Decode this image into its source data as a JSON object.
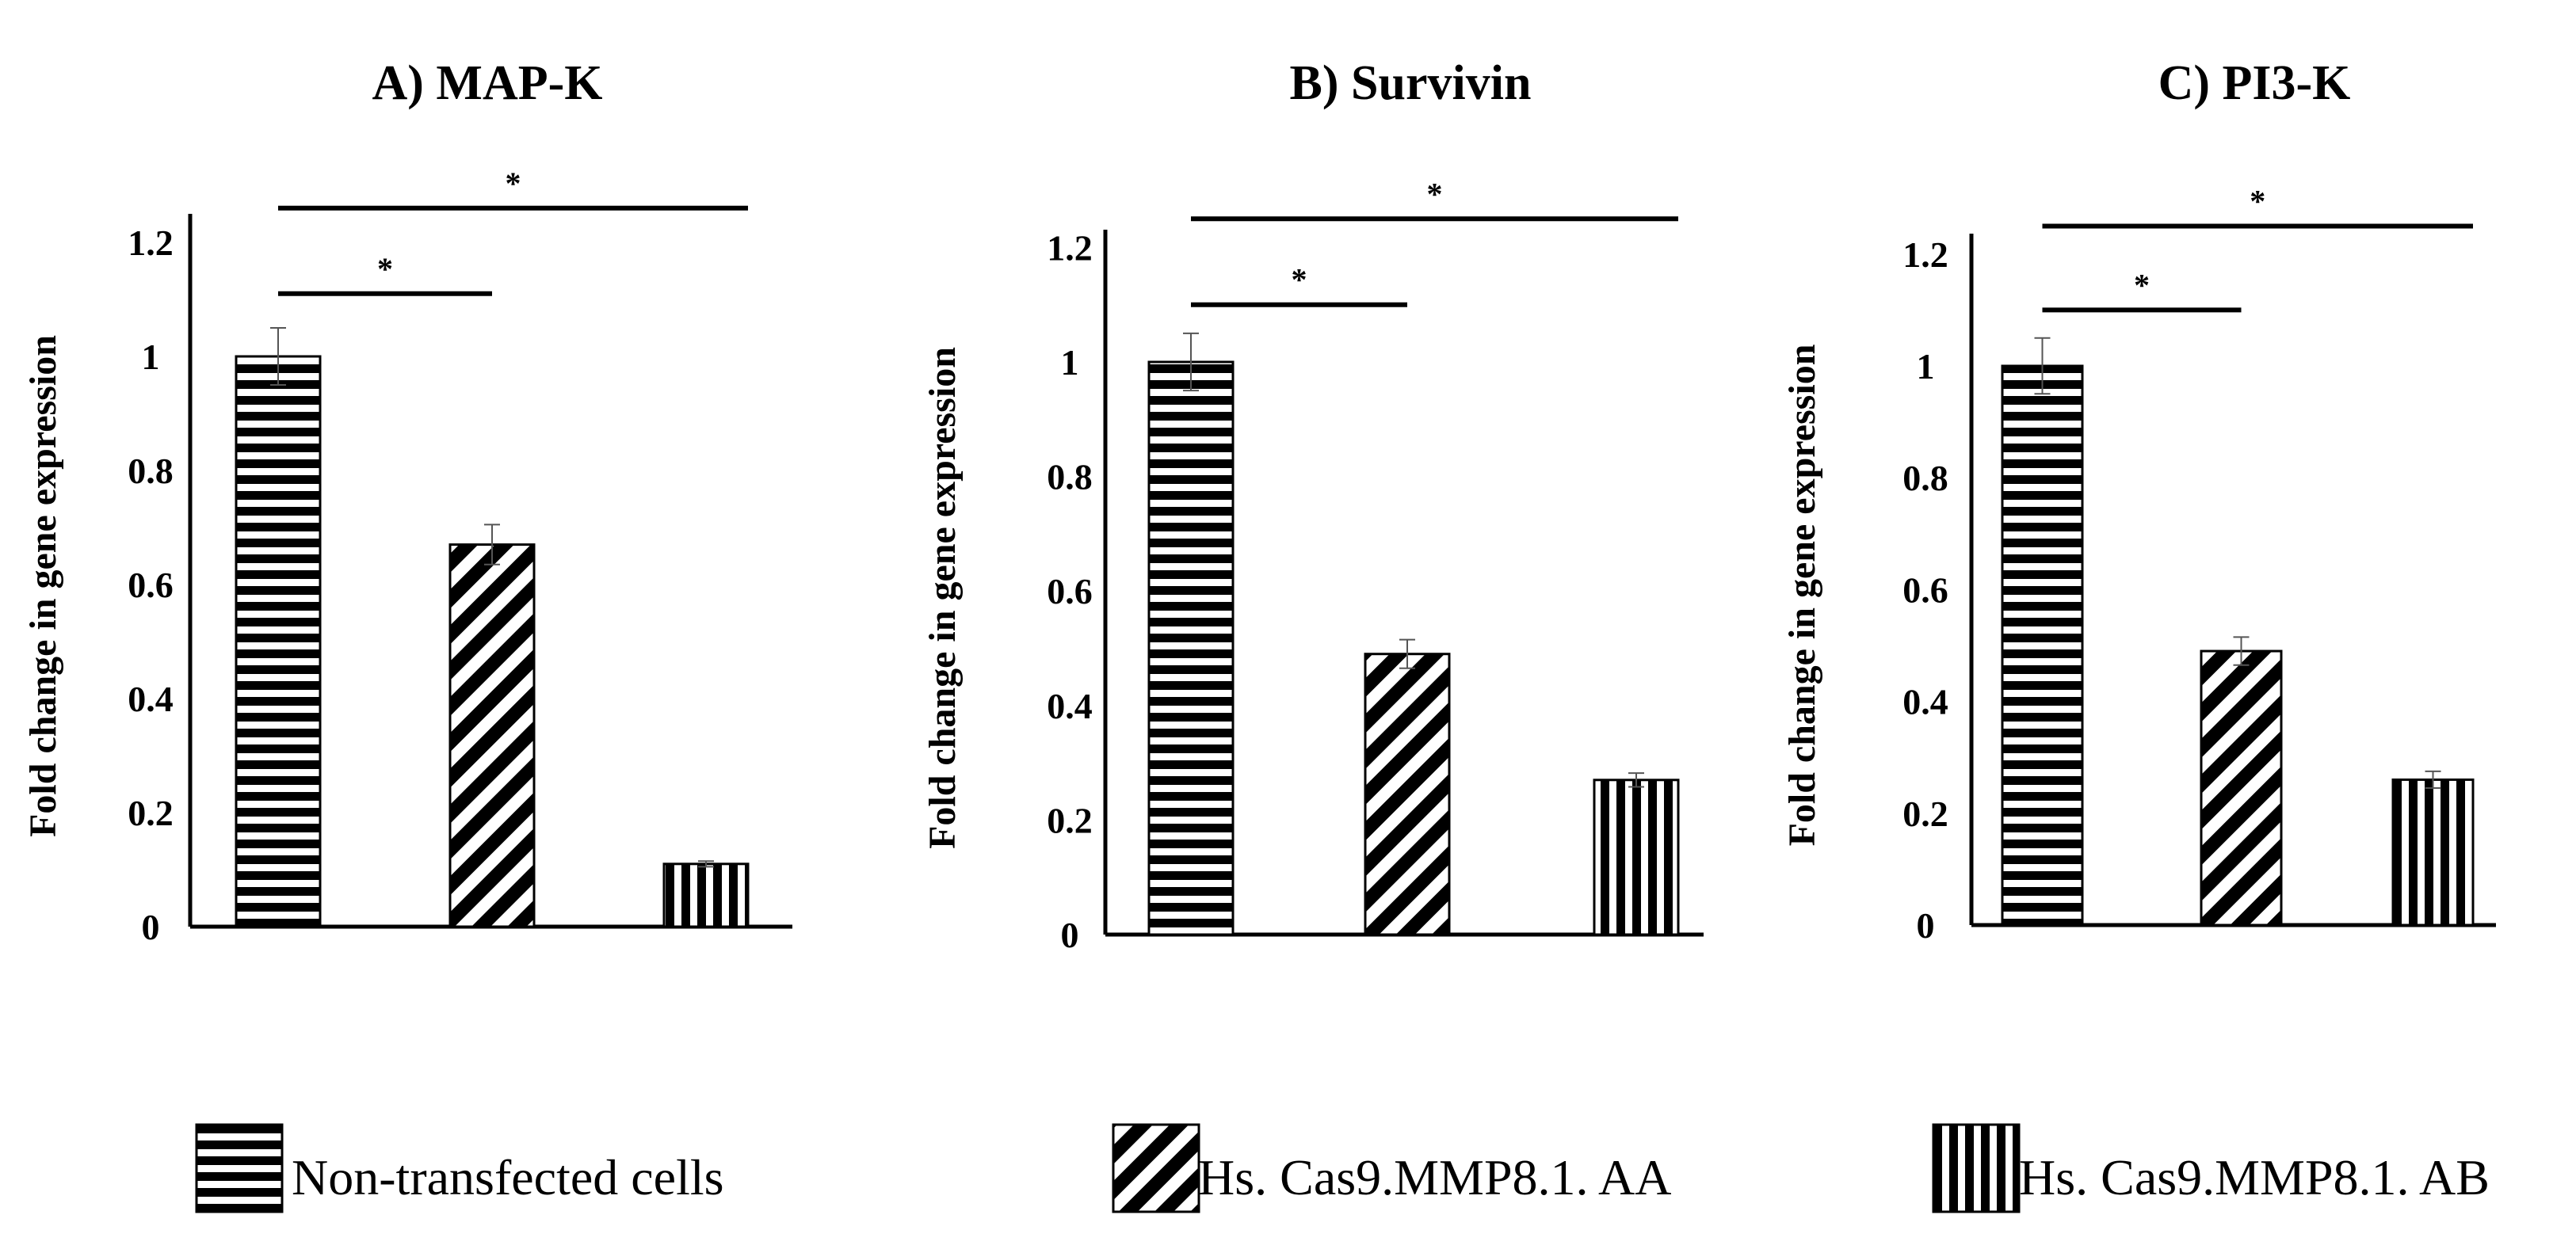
{
  "figure": {
    "legend": [
      {
        "label": "Non-transfected cells",
        "pattern": "horizontal"
      },
      {
        "label": "Hs. Cas9.MMP8.1. AA",
        "pattern": "diagonal"
      },
      {
        "label": "Hs. Cas9.MMP8.1. AB",
        "pattern": "vertical"
      }
    ],
    "colors": {
      "bar": "#000000",
      "pattern_bg": "#ffffff",
      "error_bar": "#555555"
    }
  },
  "chart_data": [
    {
      "type": "bar",
      "title": "A) MAP-K",
      "ylabel": "Fold change in gene expression",
      "xlabel": "",
      "ylim": [
        0,
        1.2
      ],
      "yticks": [
        0,
        0.2,
        0.4,
        0.6,
        0.8,
        1,
        1.2
      ],
      "ytick_labels": [
        "0",
        "0.2",
        "0.4",
        "0.6",
        "0.8",
        "1",
        "1.2"
      ],
      "categories": [
        "Non-transfected cells",
        "Hs. Cas9.MMP8.1. AA",
        "Hs. Cas9.MMP8.1. AB"
      ],
      "values": [
        1.0,
        0.67,
        0.11
      ],
      "errors": [
        0.05,
        0.035,
        0.005
      ],
      "significance": [
        {
          "from": 0,
          "to": 1,
          "label": "*",
          "level": 1.11
        },
        {
          "from": 0,
          "to": 2,
          "label": "*",
          "level": 1.26
        }
      ]
    },
    {
      "type": "bar",
      "title": "B) Survivin",
      "ylabel": "Fold change in gene expression",
      "xlabel": "",
      "ylim": [
        0,
        1.2
      ],
      "yticks": [
        0,
        0.2,
        0.4,
        0.6,
        0.8,
        1,
        1.2
      ],
      "ytick_labels": [
        "0",
        "0.2",
        "0.4",
        "0.6",
        "0.8",
        "1",
        "1.2"
      ],
      "categories": [
        "Non-transfected cells",
        "Hs. Cas9.MMP8.1. AA",
        "Hs. Cas9.MMP8.1. AB"
      ],
      "values": [
        1.0,
        0.49,
        0.27
      ],
      "errors": [
        0.05,
        0.025,
        0.012
      ],
      "significance": [
        {
          "from": 0,
          "to": 1,
          "label": "*",
          "level": 1.1
        },
        {
          "from": 0,
          "to": 2,
          "label": "*",
          "level": 1.25
        }
      ]
    },
    {
      "type": "bar",
      "title": "C) PI3-K",
      "ylabel": "Fold change in gene expression",
      "xlabel": "",
      "ylim": [
        0,
        1.2
      ],
      "yticks": [
        0,
        0.2,
        0.4,
        0.6,
        0.8,
        1,
        1.2
      ],
      "ytick_labels": [
        "0",
        "0.2",
        "0.4",
        "0.6",
        "0.8",
        "1",
        "1.2"
      ],
      "categories": [
        "Non-transfected cells",
        "Hs. Cas9.MMP8.1. AA",
        "Hs. Cas9.MMP8.1. AB"
      ],
      "values": [
        1.0,
        0.49,
        0.26
      ],
      "errors": [
        0.05,
        0.025,
        0.015
      ],
      "significance": [
        {
          "from": 0,
          "to": 1,
          "label": "*",
          "level": 1.1
        },
        {
          "from": 0,
          "to": 2,
          "label": "*",
          "level": 1.25
        }
      ]
    }
  ]
}
